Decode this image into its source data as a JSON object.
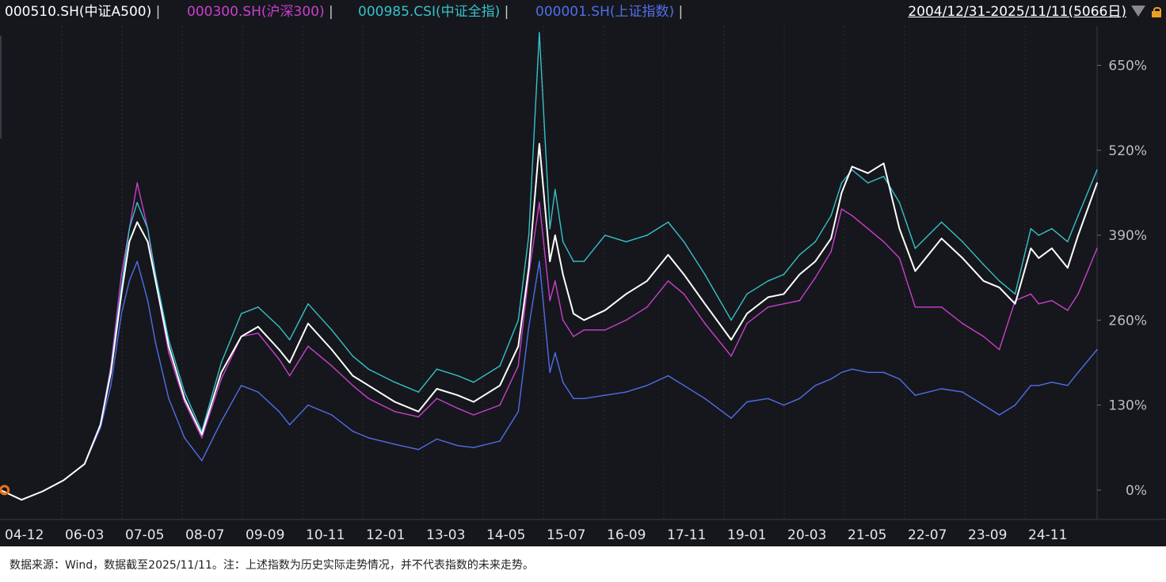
{
  "header": {
    "legend": [
      {
        "code": "000510.SH(中证A500)",
        "color": "#ffffff"
      },
      {
        "code": "000300.SH(沪深300)",
        "color": "#c93fcf"
      },
      {
        "code": "000985.CSI(中证全指)",
        "color": "#35c2c9"
      },
      {
        "code": "000001.SH(上证指数)",
        "color": "#4f6ee8"
      }
    ],
    "separator": "|",
    "date_range": "2004/12/31-2025/11/11(5066日)",
    "dropdown_icon": "triangle-down-icon",
    "lock_icon": "lock-icon"
  },
  "footer": {
    "source_note": "数据来源：Wind，数据截至2025/11/11。注：上述指数为历史实际走势情况，并不代表指数的未来走势。"
  },
  "chart_data": {
    "type": "line",
    "title": "",
    "xlabel": "",
    "ylabel": "",
    "x_ticks": [
      "04-12",
      "06-03",
      "07-05",
      "08-07",
      "09-09",
      "10-11",
      "12-01",
      "13-03",
      "14-05",
      "15-07",
      "16-09",
      "17-11",
      "19-01",
      "20-03",
      "21-05",
      "22-07",
      "23-09",
      "24-11"
    ],
    "y_ticks": [
      "0%",
      "130%",
      "260%",
      "390%",
      "520%",
      "650%"
    ],
    "ylim": [
      -45,
      710
    ],
    "xlim": [
      2004.99,
      2025.86
    ],
    "y_axis_side": "right",
    "grid": "vertical dotted",
    "start_marker_color": "#e8721c",
    "series": [
      {
        "name": "000510.SH(中证A500)",
        "color": "#ffffff",
        "x": [
          2005.0,
          2005.4,
          2005.8,
          2006.2,
          2006.6,
          2006.9,
          2007.1,
          2007.3,
          2007.45,
          2007.6,
          2007.8,
          2007.95,
          2008.2,
          2008.5,
          2008.83,
          2009.2,
          2009.58,
          2009.9,
          2010.3,
          2010.5,
          2010.85,
          2011.3,
          2011.7,
          2012.0,
          2012.5,
          2012.95,
          2013.3,
          2013.7,
          2014.0,
          2014.5,
          2014.85,
          2015.05,
          2015.25,
          2015.45,
          2015.55,
          2015.7,
          2015.9,
          2016.1,
          2016.5,
          2016.9,
          2017.3,
          2017.7,
          2018.0,
          2018.4,
          2018.9,
          2019.2,
          2019.6,
          2019.9,
          2020.2,
          2020.5,
          2020.8,
          2021.0,
          2021.2,
          2021.5,
          2021.8,
          2022.1,
          2022.4,
          2022.9,
          2023.3,
          2023.7,
          2024.0,
          2024.3,
          2024.6,
          2024.75,
          2025.0,
          2025.3,
          2025.5,
          2025.86
        ],
        "y": [
          0,
          -15,
          -2,
          15,
          40,
          100,
          180,
          300,
          380,
          410,
          380,
          320,
          220,
          140,
          85,
          180,
          235,
          250,
          215,
          195,
          255,
          215,
          175,
          160,
          135,
          120,
          155,
          145,
          135,
          160,
          220,
          340,
          530,
          350,
          390,
          330,
          270,
          260,
          275,
          300,
          320,
          360,
          330,
          285,
          230,
          270,
          295,
          300,
          330,
          350,
          385,
          455,
          495,
          485,
          500,
          400,
          335,
          385,
          355,
          320,
          310,
          285,
          370,
          355,
          370,
          340,
          390,
          470
        ]
      },
      {
        "name": "000300.SH(沪深300)",
        "color": "#c93fcf",
        "x": [
          2005.0,
          2005.4,
          2005.8,
          2006.2,
          2006.6,
          2006.9,
          2007.1,
          2007.3,
          2007.45,
          2007.6,
          2007.8,
          2007.95,
          2008.2,
          2008.5,
          2008.83,
          2009.2,
          2009.58,
          2009.9,
          2010.3,
          2010.5,
          2010.85,
          2011.3,
          2011.7,
          2012.0,
          2012.5,
          2012.95,
          2013.3,
          2013.7,
          2014.0,
          2014.5,
          2014.85,
          2015.05,
          2015.25,
          2015.45,
          2015.55,
          2015.7,
          2015.9,
          2016.1,
          2016.5,
          2016.9,
          2017.3,
          2017.7,
          2018.0,
          2018.4,
          2018.9,
          2019.2,
          2019.6,
          2019.9,
          2020.2,
          2020.5,
          2020.8,
          2021.0,
          2021.2,
          2021.5,
          2021.8,
          2022.1,
          2022.4,
          2022.9,
          2023.3,
          2023.7,
          2024.0,
          2024.3,
          2024.6,
          2024.75,
          2025.0,
          2025.3,
          2025.5,
          2025.86
        ],
        "y": [
          0,
          -15,
          -2,
          15,
          40,
          100,
          190,
          330,
          400,
          470,
          400,
          320,
          210,
          135,
          80,
          170,
          235,
          240,
          200,
          175,
          220,
          190,
          160,
          140,
          120,
          112,
          140,
          125,
          115,
          130,
          190,
          330,
          440,
          290,
          320,
          260,
          235,
          245,
          245,
          260,
          280,
          320,
          300,
          255,
          205,
          255,
          280,
          285,
          290,
          325,
          365,
          430,
          420,
          400,
          380,
          355,
          280,
          280,
          255,
          235,
          215,
          290,
          300,
          285,
          290,
          275,
          300,
          370
        ]
      },
      {
        "name": "000985.CSI(中证全指)",
        "color": "#35c2c9",
        "x": [
          2005.0,
          2005.4,
          2005.8,
          2006.2,
          2006.6,
          2006.9,
          2007.1,
          2007.3,
          2007.45,
          2007.6,
          2007.8,
          2007.95,
          2008.2,
          2008.5,
          2008.83,
          2009.2,
          2009.58,
          2009.9,
          2010.3,
          2010.5,
          2010.85,
          2011.3,
          2011.7,
          2012.0,
          2012.5,
          2012.95,
          2013.3,
          2013.7,
          2014.0,
          2014.5,
          2014.85,
          2015.05,
          2015.25,
          2015.45,
          2015.55,
          2015.7,
          2015.9,
          2016.1,
          2016.5,
          2016.9,
          2017.3,
          2017.7,
          2018.0,
          2018.4,
          2018.9,
          2019.2,
          2019.6,
          2019.9,
          2020.2,
          2020.5,
          2020.8,
          2021.0,
          2021.2,
          2021.5,
          2021.8,
          2022.1,
          2022.4,
          2022.9,
          2023.3,
          2023.7,
          2024.0,
          2024.3,
          2024.6,
          2024.75,
          2025.0,
          2025.3,
          2025.5,
          2025.86
        ],
        "y": [
          0,
          -15,
          -2,
          15,
          40,
          100,
          185,
          310,
          400,
          440,
          400,
          330,
          230,
          150,
          90,
          195,
          270,
          280,
          250,
          230,
          285,
          245,
          205,
          185,
          165,
          150,
          185,
          175,
          165,
          190,
          260,
          390,
          700,
          400,
          460,
          380,
          350,
          350,
          390,
          380,
          390,
          410,
          380,
          330,
          260,
          300,
          320,
          330,
          360,
          380,
          420,
          470,
          490,
          470,
          480,
          440,
          370,
          410,
          380,
          345,
          320,
          300,
          400,
          390,
          400,
          380,
          420,
          490
        ]
      },
      {
        "name": "000001.SH(上证指数)",
        "color": "#4f6ee8",
        "x": [
          2005.0,
          2005.4,
          2005.8,
          2006.2,
          2006.6,
          2006.9,
          2007.1,
          2007.3,
          2007.45,
          2007.6,
          2007.8,
          2007.95,
          2008.2,
          2008.5,
          2008.83,
          2009.2,
          2009.58,
          2009.9,
          2010.3,
          2010.5,
          2010.85,
          2011.3,
          2011.7,
          2012.0,
          2012.5,
          2012.95,
          2013.3,
          2013.7,
          2014.0,
          2014.5,
          2014.85,
          2015.05,
          2015.25,
          2015.45,
          2015.55,
          2015.7,
          2015.9,
          2016.1,
          2016.5,
          2016.9,
          2017.3,
          2017.7,
          2018.0,
          2018.4,
          2018.9,
          2019.2,
          2019.6,
          2019.9,
          2020.2,
          2020.5,
          2020.8,
          2021.0,
          2021.2,
          2021.5,
          2021.8,
          2022.1,
          2022.4,
          2022.9,
          2023.3,
          2023.7,
          2024.0,
          2024.3,
          2024.6,
          2024.75,
          2025.0,
          2025.3,
          2025.5,
          2025.86
        ],
        "y": [
          0,
          -15,
          -2,
          15,
          40,
          95,
          160,
          270,
          320,
          350,
          290,
          225,
          140,
          80,
          45,
          105,
          160,
          150,
          120,
          100,
          130,
          115,
          90,
          80,
          70,
          62,
          78,
          68,
          65,
          75,
          120,
          250,
          350,
          180,
          210,
          165,
          140,
          140,
          145,
          150,
          160,
          175,
          160,
          140,
          110,
          135,
          140,
          130,
          140,
          160,
          170,
          180,
          185,
          180,
          180,
          170,
          145,
          155,
          150,
          130,
          115,
          130,
          160,
          160,
          165,
          160,
          180,
          215
        ]
      }
    ]
  }
}
